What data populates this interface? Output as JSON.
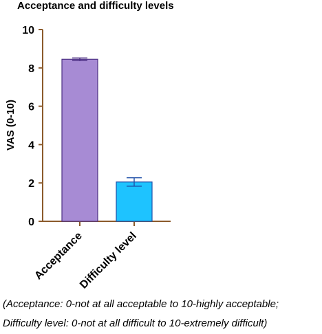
{
  "chart_data": {
    "type": "bar",
    "title": "Acceptance and difficulty levels",
    "xlabel": "",
    "ylabel": "VAS (0-10)",
    "ylim": [
      0,
      10
    ],
    "yticks": [
      0,
      2,
      4,
      6,
      8,
      10
    ],
    "grid": false,
    "categories": [
      "Acceptance",
      "Difficulty level"
    ],
    "values": [
      8.45,
      2.05
    ],
    "error": [
      0.07,
      0.22
    ],
    "colors": [
      "#A78BD4",
      "#1EC3FF"
    ],
    "edge_colors": [
      "#4B2E83",
      "#1F4FA8"
    ],
    "axis_color": "#8B5A2B"
  },
  "notes": [
    "(Acceptance: 0-not at all acceptable to 10-highly acceptable;",
    "Difficulty level: 0-not at all difficult to 10-extremely difficult)"
  ]
}
